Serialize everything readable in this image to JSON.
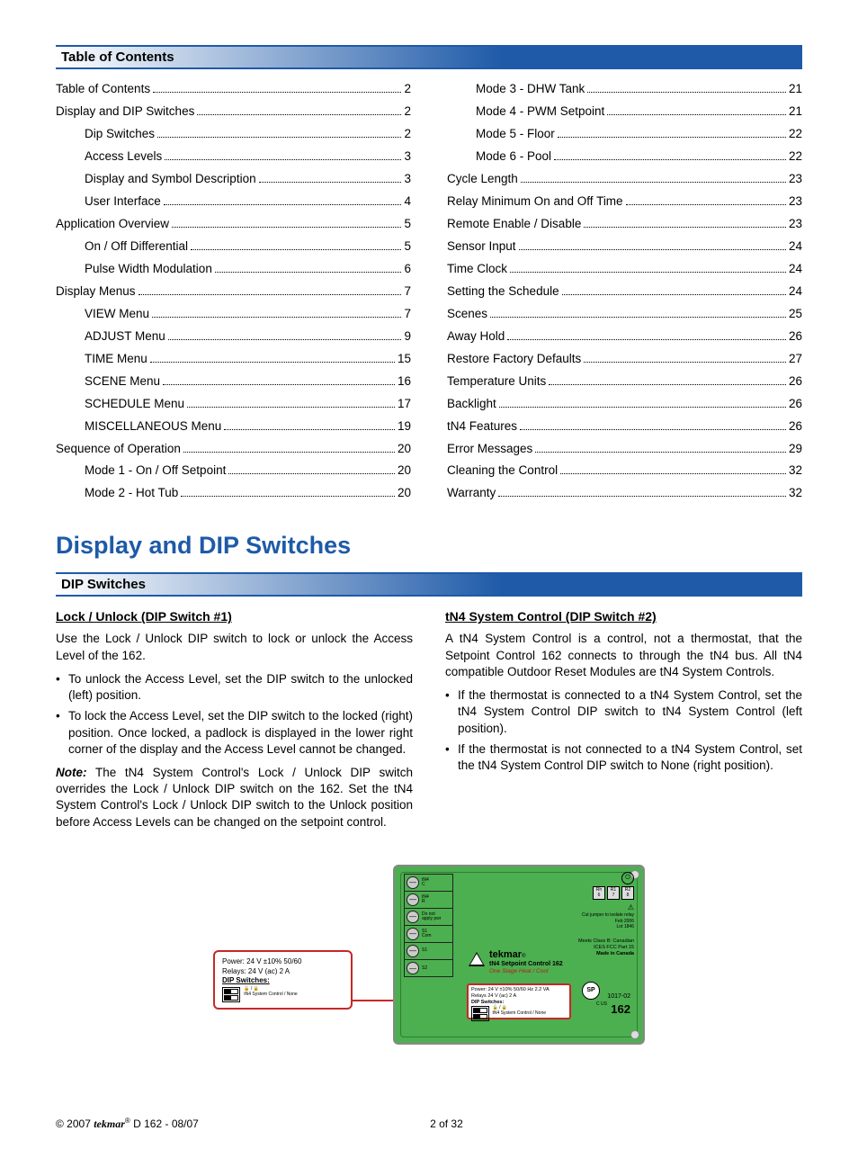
{
  "sections": {
    "toc_header": "Table of Contents",
    "dip_header": "DIP Switches"
  },
  "main_heading": "Display and DIP Switches",
  "toc_left": [
    {
      "label": "Table of Contents",
      "page": "2",
      "indent": false
    },
    {
      "label": "Display and DIP Switches",
      "page": "2",
      "indent": false
    },
    {
      "label": "Dip Switches",
      "page": "2",
      "indent": true
    },
    {
      "label": "Access Levels",
      "page": "3",
      "indent": true
    },
    {
      "label": "Display and Symbol Description",
      "page": "3",
      "indent": true
    },
    {
      "label": "User Interface",
      "page": "4",
      "indent": true
    },
    {
      "label": "Application Overview",
      "page": "5",
      "indent": false
    },
    {
      "label": "On / Off Differential",
      "page": "5",
      "indent": true
    },
    {
      "label": "Pulse Width Modulation",
      "page": "6",
      "indent": true
    },
    {
      "label": "Display Menus",
      "page": "7",
      "indent": false
    },
    {
      "label": "VIEW Menu",
      "page": "7",
      "indent": true
    },
    {
      "label": "ADJUST Menu",
      "page": "9",
      "indent": true
    },
    {
      "label": "TIME Menu",
      "page": "15",
      "indent": true
    },
    {
      "label": "SCENE Menu",
      "page": "16",
      "indent": true
    },
    {
      "label": "SCHEDULE Menu",
      "page": "17",
      "indent": true
    },
    {
      "label": "MISCELLANEOUS Menu",
      "page": "19",
      "indent": true
    },
    {
      "label": "Sequence of Operation",
      "page": "20",
      "indent": false
    },
    {
      "label": "Mode 1 - On / Off Setpoint",
      "page": "20",
      "indent": true
    },
    {
      "label": "Mode 2 - Hot Tub",
      "page": "20",
      "indent": true
    }
  ],
  "toc_right": [
    {
      "label": "Mode 3 - DHW Tank",
      "page": "21",
      "indent": true
    },
    {
      "label": "Mode 4 - PWM Setpoint",
      "page": "21",
      "indent": true
    },
    {
      "label": "Mode 5 - Floor",
      "page": "22",
      "indent": true
    },
    {
      "label": "Mode 6 - Pool",
      "page": "22",
      "indent": true
    },
    {
      "label": "Cycle Length",
      "page": "23",
      "indent": false
    },
    {
      "label": "Relay Minimum On and Off Time",
      "page": "23",
      "indent": false
    },
    {
      "label": "Remote Enable / Disable",
      "page": "23",
      "indent": false
    },
    {
      "label": "Sensor Input",
      "page": "24",
      "indent": false
    },
    {
      "label": "Time Clock",
      "page": "24",
      "indent": false
    },
    {
      "label": "Setting the Schedule",
      "page": "24",
      "indent": false
    },
    {
      "label": "Scenes",
      "page": "25",
      "indent": false
    },
    {
      "label": "Away Hold",
      "page": "26",
      "indent": false
    },
    {
      "label": "Restore Factory Defaults",
      "page": "27",
      "indent": false
    },
    {
      "label": "Temperature Units",
      "page": "26",
      "indent": false
    },
    {
      "label": "Backlight",
      "page": "26",
      "indent": false
    },
    {
      "label": "tN4 Features",
      "page": "26",
      "indent": false
    },
    {
      "label": "Error Messages",
      "page": "29",
      "indent": false
    },
    {
      "label": "Cleaning the Control",
      "page": "32",
      "indent": false
    },
    {
      "label": "Warranty",
      "page": "32",
      "indent": false
    }
  ],
  "left_col": {
    "heading": "Lock / Unlock (DIP Switch #1)",
    "intro": "Use the Lock / Unlock DIP switch to lock or unlock the Access Level of the 162.",
    "bullets": [
      "To unlock the Access Level, set the DIP switch to the unlocked (left) position.",
      "To lock the Access Level, set the DIP switch to the locked (right) position. Once locked, a padlock is displayed in the lower right corner of the display and the Access Level cannot be changed."
    ],
    "note_label": "Note:",
    "note_body": " The tN4 System Control's Lock / Unlock DIP switch overrides the Lock / Unlock DIP switch on the 162. Set the tN4 System Control's Lock / Unlock DIP switch to the Unlock position before Access Levels can be changed on the setpoint control."
  },
  "right_col": {
    "heading": "tN4 System Control (DIP Switch #2)",
    "intro": "A tN4 System Control is a control, not a thermostat, that the Setpoint Control 162 connects to through the tN4 bus. All tN4 compatible Outdoor Reset Modules are tN4 System Controls.",
    "bullets": [
      "If the thermostat is connected to a tN4 System Control, set the tN4 System Control DIP switch to tN4 System Control (left position).",
      "If the thermostat is not connected to a tN4 System Control, set the tN4 System Control DIP switch to None (right position)."
    ]
  },
  "diagram": {
    "callout": {
      "power": "Power: 24 V ±10% 50/60",
      "relays": "Relays: 24 V (ac) 2 A",
      "dip_hdr": "DIP Switches:",
      "row1": "🔓 / 🔒",
      "row2": "tN4 System Control / None"
    },
    "pcb": {
      "brand": "tekmar",
      "reg": "®",
      "product": "tN4 Setpoint Control 162",
      "subtitle": "One Stage Heat / Cool",
      "pins": [
        "Rh",
        "R1",
        "R2"
      ],
      "pin_nums": [
        "6",
        "7",
        "8"
      ],
      "right1": "Cut jumper to isolate relay",
      "right2": "Feb 2006",
      "right3": "Lot 1846",
      "mid1": "Meets Class B: Canadian ICES FCC Part 15",
      "mid2": "Made in Canada",
      "ce": "C         US",
      "num_small": "1017-02",
      "num_big": "162",
      "powerbox_power": "Power: 24 V ±10% 50/60 Hz 2.2 VA",
      "powerbox_relays": "Relays 24 V (ac) 2 A",
      "powerbox_dip": "DIP Switches:",
      "powerbox_r1": "🔓 / 🔒",
      "powerbox_r2": "tN4 System Control / None"
    }
  },
  "footer": {
    "copyright_pre": "© 2007 ",
    "brand": "tekmar",
    "reg": "®",
    "doc": " D 162 - 08/07",
    "page": "2 of 32"
  },
  "colors": {
    "accent": "#1e5aa8",
    "callout": "#c62828",
    "pcb": "#4caf50"
  }
}
